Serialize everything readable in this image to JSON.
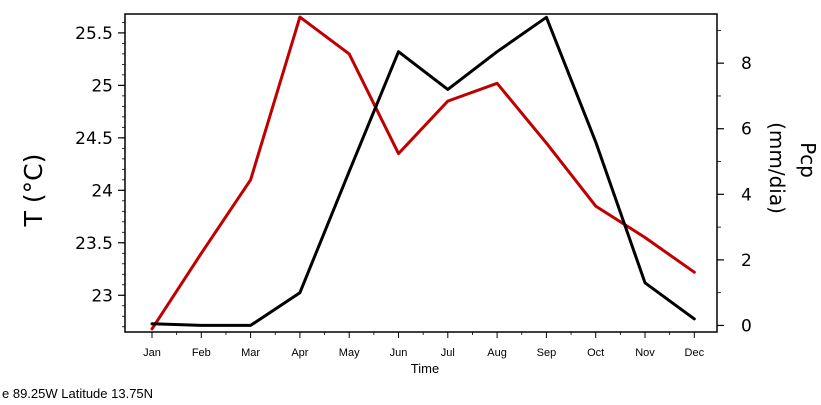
{
  "chart_data": {
    "type": "line",
    "x": [
      "Jan",
      "Feb",
      "Mar",
      "Apr",
      "May",
      "Jun",
      "Jul",
      "Aug",
      "Sep",
      "Oct",
      "Nov",
      "Dec"
    ],
    "xlabel": "Time",
    "y_left_label": "T (°C)",
    "y_right_label_top": "Pcp",
    "y_right_label_bottom": "(mm/dia)",
    "y_left_ticks": [
      "23",
      "23.5",
      "24",
      "24.5",
      "25",
      "25.5"
    ],
    "y_right_ticks": [
      "0",
      "2",
      "4",
      "6",
      "8"
    ],
    "y_left_range": [
      22.65,
      25.68
    ],
    "y_right_range": [
      -0.2,
      9.5
    ],
    "grid": false,
    "series": [
      {
        "axis": "left",
        "color": "#c00000",
        "values": [
          22.68,
          23.4,
          24.1,
          25.65,
          25.3,
          24.35,
          24.85,
          25.02,
          24.45,
          23.85,
          23.55,
          23.22
        ]
      },
      {
        "axis": "right",
        "color": "#000000",
        "values": [
          0.05,
          0.0,
          0.0,
          1.0,
          4.7,
          8.35,
          7.2,
          8.35,
          9.4,
          5.6,
          1.3,
          0.2
        ]
      }
    ]
  },
  "footnote": "e 89.25W Latitude 13.75N"
}
